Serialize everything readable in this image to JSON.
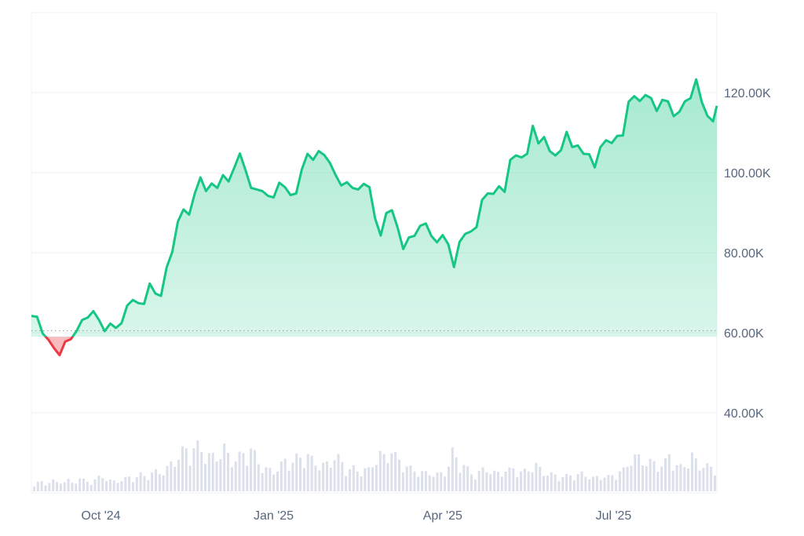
{
  "chart_data": {
    "type": "area",
    "baseline": 60500,
    "ylim": [
      20000,
      140000
    ],
    "y_ticks": [
      {
        "value": 120000,
        "label": "120.00K"
      },
      {
        "value": 100000,
        "label": "100.00K"
      },
      {
        "value": 80000,
        "label": "80.00K"
      },
      {
        "value": 60000,
        "label": "60.00K"
      },
      {
        "value": 40000,
        "label": "40.00K"
      }
    ],
    "x_ticks": [
      {
        "date": "2024-10-01",
        "label": "Oct '24"
      },
      {
        "date": "2025-01-01",
        "label": "Jan '25"
      },
      {
        "date": "2025-04-01",
        "label": "Apr '25"
      },
      {
        "date": "2025-07-01",
        "label": "Jul '25"
      }
    ],
    "xlim": [
      "2024-08-25",
      "2025-08-25"
    ],
    "colors": {
      "up": "#16c784",
      "down": "#ea3943",
      "grid": "#eff2f5",
      "volume": "#cfd6e4",
      "baseline": "#9aa3b1",
      "text": "#58667e"
    },
    "series": [
      {
        "x": [
          "2024-08-25",
          "2024-08-28",
          "2024-08-31",
          "2024-09-03",
          "2024-09-06",
          "2024-09-09",
          "2024-09-12",
          "2024-09-15",
          "2024-09-18",
          "2024-09-21",
          "2024-09-24",
          "2024-09-27",
          "2024-09-30",
          "2024-10-03",
          "2024-10-06",
          "2024-10-09",
          "2024-10-12",
          "2024-10-15",
          "2024-10-18",
          "2024-10-21",
          "2024-10-24",
          "2024-10-27",
          "2024-10-30",
          "2024-11-02",
          "2024-11-05",
          "2024-11-08",
          "2024-11-11",
          "2024-11-14",
          "2024-11-17",
          "2024-11-20",
          "2024-11-23",
          "2024-11-26",
          "2024-11-29",
          "2024-12-02",
          "2024-12-05",
          "2024-12-08",
          "2024-12-11",
          "2024-12-14",
          "2024-12-17",
          "2024-12-20",
          "2024-12-23",
          "2024-12-26",
          "2024-12-29",
          "2025-01-01",
          "2025-01-04",
          "2025-01-07",
          "2025-01-10",
          "2025-01-13",
          "2025-01-16",
          "2025-01-19",
          "2025-01-22",
          "2025-01-25",
          "2025-01-28",
          "2025-01-31",
          "2025-02-03",
          "2025-02-06",
          "2025-02-09",
          "2025-02-12",
          "2025-02-15",
          "2025-02-18",
          "2025-02-21",
          "2025-02-24",
          "2025-02-27",
          "2025-03-02",
          "2025-03-05",
          "2025-03-08",
          "2025-03-11",
          "2025-03-14",
          "2025-03-17",
          "2025-03-20",
          "2025-03-23",
          "2025-03-26",
          "2025-03-29",
          "2025-04-01",
          "2025-04-04",
          "2025-04-07",
          "2025-04-10",
          "2025-04-13",
          "2025-04-16",
          "2025-04-19",
          "2025-04-22",
          "2025-04-25",
          "2025-04-28",
          "2025-05-01",
          "2025-05-04",
          "2025-05-07",
          "2025-05-10",
          "2025-05-13",
          "2025-05-16",
          "2025-05-19",
          "2025-05-22",
          "2025-05-25",
          "2025-05-28",
          "2025-05-31",
          "2025-06-03",
          "2025-06-06",
          "2025-06-09",
          "2025-06-12",
          "2025-06-15",
          "2025-06-18",
          "2025-06-21",
          "2025-06-24",
          "2025-06-27",
          "2025-06-30",
          "2025-07-03",
          "2025-07-06",
          "2025-07-09",
          "2025-07-12",
          "2025-07-15",
          "2025-07-18",
          "2025-07-21",
          "2025-07-24",
          "2025-07-27",
          "2025-07-30",
          "2025-08-02",
          "2025-08-05",
          "2025-08-08",
          "2025-08-11",
          "2025-08-14",
          "2025-08-17",
          "2025-08-20",
          "2025-08-23",
          "2025-08-25"
        ],
        "values": [
          64200,
          64000,
          59800,
          58300,
          56200,
          54400,
          57800,
          58400,
          60400,
          63200,
          63800,
          65400,
          63200,
          60400,
          62300,
          61200,
          62400,
          66800,
          68200,
          67400,
          67200,
          72300,
          69800,
          69200,
          76300,
          80200,
          87800,
          90800,
          89500,
          94800,
          98800,
          95400,
          97300,
          96200,
          99400,
          97800,
          101200,
          104800,
          100600,
          96200,
          95800,
          95400,
          94200,
          93800,
          97500,
          96400,
          94400,
          94800,
          100800,
          104700,
          103200,
          105400,
          104400,
          102400,
          99400,
          96800,
          97600,
          96200,
          95800,
          97200,
          96400,
          88600,
          84300,
          89900,
          90600,
          86300,
          80900,
          83800,
          84200,
          86700,
          87300,
          84200,
          82600,
          84400,
          82100,
          76400,
          82700,
          84700,
          85300,
          86400,
          93200,
          94800,
          94700,
          96600,
          95200,
          103200,
          104300,
          103800,
          104700,
          111700,
          107300,
          108900,
          105400,
          104300,
          105600,
          110200,
          106400,
          106800,
          104700,
          104600,
          101300,
          106400,
          108100,
          107400,
          109200,
          109300,
          117700,
          119100,
          117900,
          119400,
          118600,
          115400,
          118200,
          117800,
          114100,
          115200,
          117800,
          118600,
          123300,
          117600,
          114200,
          112800,
          116700
        ],
        "name": ""
      }
    ],
    "volume": [
      0.12,
      0.18,
      0.1,
      0.22,
      0.14,
      0.16,
      0.2,
      0.12,
      0.24,
      0.18,
      0.15,
      0.2,
      0.26,
      0.22,
      0.16,
      0.18,
      0.2,
      0.24,
      0.22,
      0.28,
      0.26,
      0.3,
      0.34,
      0.32,
      0.4,
      0.52,
      0.6,
      0.72,
      0.66,
      0.78,
      0.7,
      0.62,
      0.58,
      0.6,
      0.74,
      0.56,
      0.54,
      0.6,
      0.68,
      0.72,
      0.52,
      0.4,
      0.36,
      0.34,
      0.42,
      0.52,
      0.48,
      0.56,
      0.58,
      0.62,
      0.5,
      0.46,
      0.44,
      0.48,
      0.62,
      0.5,
      0.36,
      0.4,
      0.34,
      0.38,
      0.36,
      0.52,
      0.62,
      0.56,
      0.72,
      0.54,
      0.5,
      0.4,
      0.36,
      0.34,
      0.3,
      0.32,
      0.28,
      0.3,
      0.36,
      0.66,
      0.52,
      0.44,
      0.34,
      0.26,
      0.34,
      0.4,
      0.32,
      0.3,
      0.36,
      0.34,
      0.4,
      0.32,
      0.34,
      0.4,
      0.44,
      0.34,
      0.3,
      0.28,
      0.26,
      0.24,
      0.28,
      0.26,
      0.3,
      0.28,
      0.22,
      0.24,
      0.26,
      0.24,
      0.28,
      0.34,
      0.36,
      0.6,
      0.58,
      0.52,
      0.5,
      0.48,
      0.44,
      0.46,
      0.66,
      0.44,
      0.4,
      0.48,
      0.62,
      0.42,
      0.46,
      0.4,
      0.38
    ]
  }
}
